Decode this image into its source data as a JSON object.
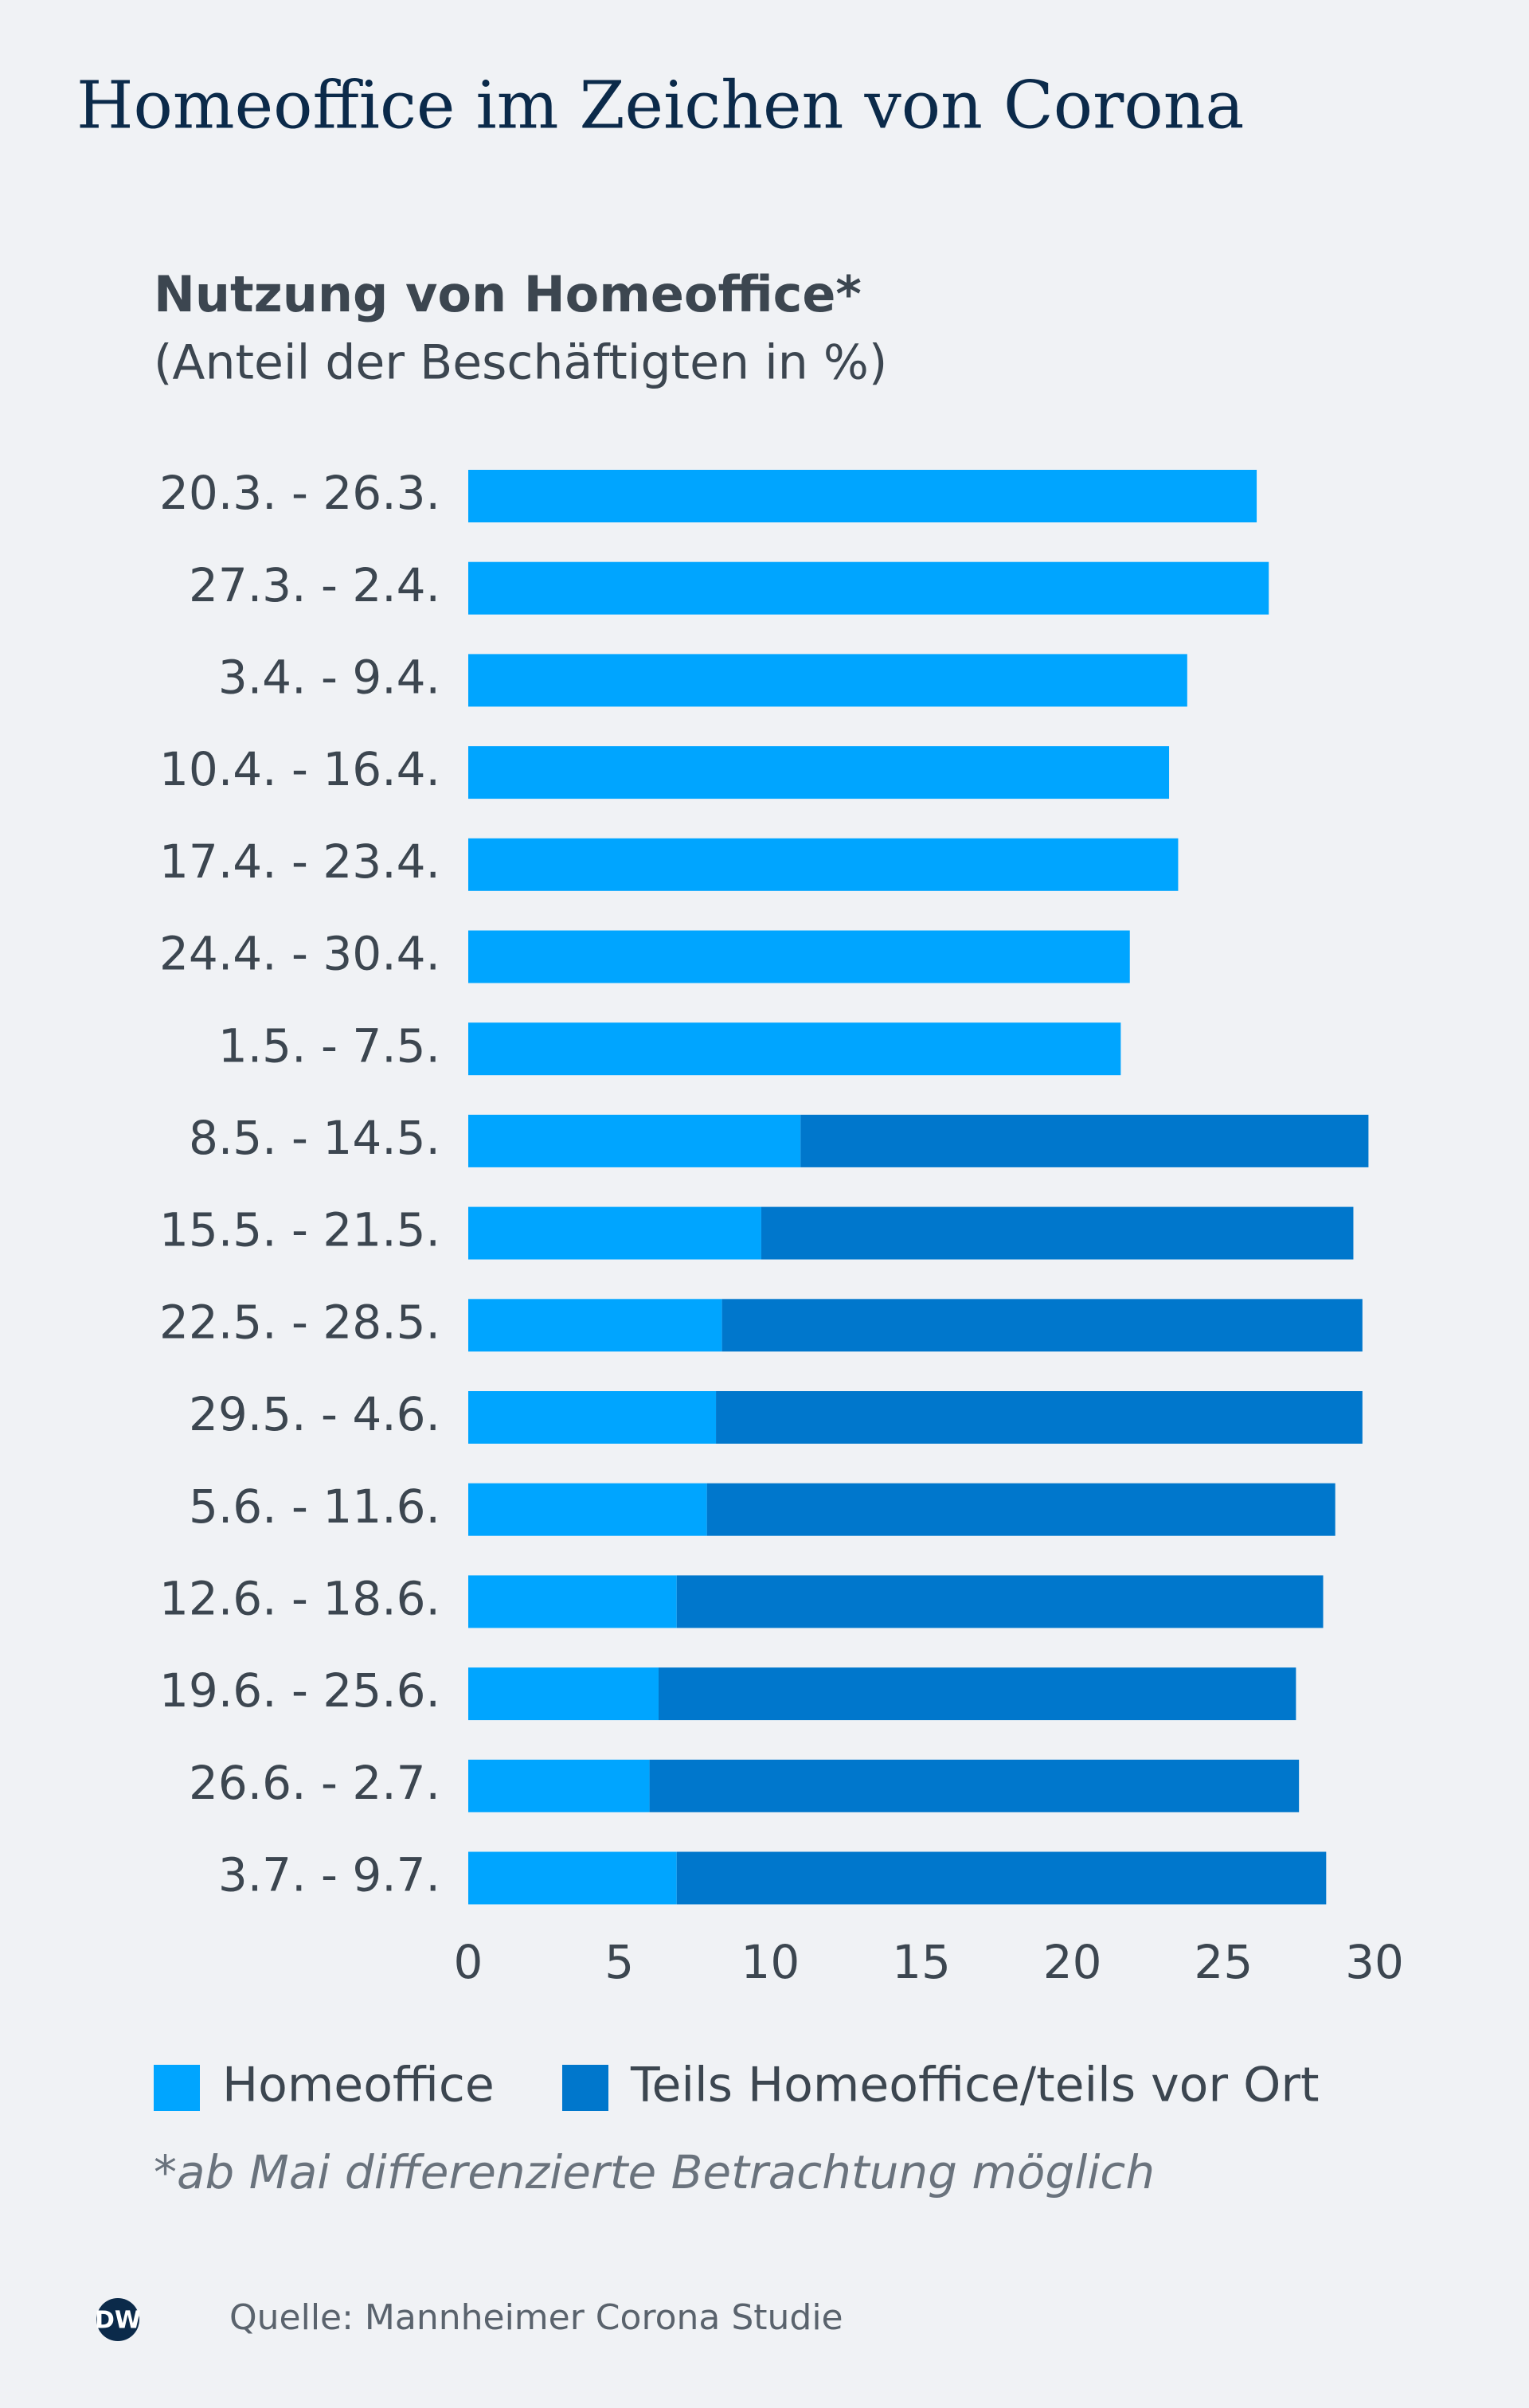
{
  "chart_data": {
    "type": "stacked-bar-horizontal",
    "title": "Homeoffice im Zeichen von Corona",
    "subtitle": "Nutzung von Homeoffice*",
    "unit_label": "(Anteil der Beschäftigten in %)",
    "categories": [
      "20.3. - 26.3.",
      "27.3. - 2.4.",
      "3.4. - 9.4.",
      "10.4. - 16.4.",
      "17.4. - 23.4.",
      "24.4. - 30.4.",
      "1.5. - 7.5.",
      "8.5. - 14.5.",
      "15.5. - 21.5.",
      "22.5. - 28.5.",
      "29.5. - 4.6.",
      "5.6. - 11.6.",
      "12.6. - 18.6.",
      "19.6. - 25.6.",
      "26.6. - 2.7.",
      "3.7. - 9.7."
    ],
    "series": [
      {
        "name": "Homeoffice",
        "color": "#00a5ff",
        "values": [
          26.1,
          26.5,
          23.8,
          23.2,
          23.5,
          21.9,
          21.6,
          11.0,
          9.7,
          8.4,
          8.2,
          7.9,
          6.9,
          6.3,
          6.0,
          6.9
        ]
      },
      {
        "name": "Teils Homeoffice/teils vor Ort",
        "color": "#0077cc",
        "values": [
          null,
          null,
          null,
          null,
          null,
          null,
          null,
          18.8,
          19.6,
          21.2,
          21.4,
          20.8,
          21.4,
          21.1,
          21.5,
          21.5
        ]
      }
    ],
    "xlim": [
      0,
      30
    ],
    "xticks": [
      0,
      5,
      10,
      15,
      20,
      25,
      30
    ],
    "grid": false,
    "footnote": "*ab Mai differenzierte Betrachtung möglich",
    "source": "Quelle: Mannheimer Corona Studie",
    "logo": "DW"
  }
}
